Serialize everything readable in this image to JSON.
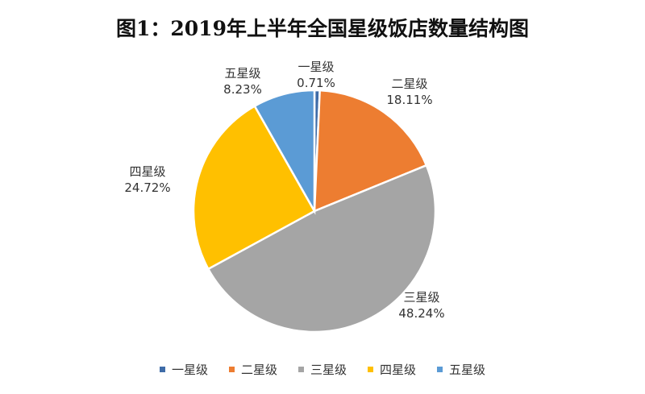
{
  "chart_data": {
    "type": "pie",
    "title": "图1：2019年上半年全国星级饭店数量结构图",
    "slices": [
      {
        "name": "一星级",
        "value": 0.71,
        "label": "0.71%",
        "color": "#3F6CA8"
      },
      {
        "name": "二星级",
        "value": 18.11,
        "label": "18.11%",
        "color": "#ED7D31"
      },
      {
        "name": "三星级",
        "value": 48.24,
        "label": "48.24%",
        "color": "#A5A5A5"
      },
      {
        "name": "四星级",
        "value": 24.72,
        "label": "24.72%",
        "color": "#FFC000"
      },
      {
        "name": "五星级",
        "value": 8.23,
        "label": "8.23%",
        "color": "#5B9BD5"
      }
    ],
    "start_angle": "12 o'clock",
    "direction": "clockwise",
    "legend_position": "bottom"
  }
}
